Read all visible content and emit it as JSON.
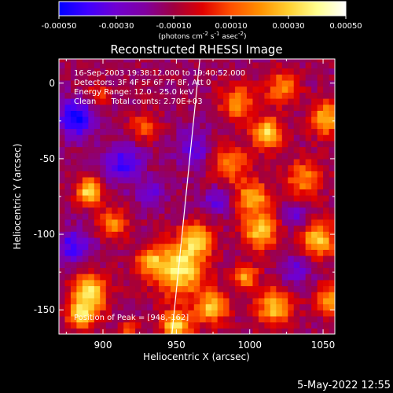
{
  "colorbar": {
    "ticks": [
      "-0.00050",
      "-0.00030",
      "-0.00010",
      "0.00010",
      "0.00030",
      "0.00050"
    ],
    "tick_values": [
      -0.0005,
      -0.0003,
      -0.0001,
      0.0001,
      0.0003,
      0.0005
    ],
    "range": [
      -0.0005,
      0.0005
    ],
    "units_parts": [
      "(photons cm",
      "-2",
      " s",
      "-1",
      " asec",
      "-2",
      ")"
    ],
    "colors": [
      "#0000ff",
      "#4000ff",
      "#7000d0",
      "#8000a0",
      "#a00040",
      "#e00000",
      "#ff5000",
      "#ff9000",
      "#ffd030",
      "#ffff90",
      "#ffffff"
    ]
  },
  "header": {
    "title": "Reconstructed RHESSI Image",
    "info_lines": [
      "16-Sep-2003 19:38:12.000 to 19:40:52.000",
      "Detectors: 3F 4F 5F 6F 7F 8F, Att 0",
      "Energy Range: 12.0 - 25.0 keV",
      "Clean      Total counts: 2.70E+03"
    ],
    "peak_label": "Position of Peak = [948,-162]"
  },
  "chart_data": {
    "type": "heatmap",
    "title": "Reconstructed RHESSI Image",
    "xlabel": "Heliocentric X (arcsec)",
    "ylabel": "Heliocentric Y (arcsec)",
    "xlim": [
      870,
      1058
    ],
    "ylim": [
      -166,
      16
    ],
    "xticks": [
      900,
      950,
      1000,
      1050
    ],
    "yticks": [
      0,
      -50,
      -100,
      -150
    ],
    "peak": [
      948,
      -162
    ],
    "limb_x_at_ylim": [
      -166,
      947,
      16,
      966
    ],
    "blobs": [
      {
        "x": 889,
        "y": -73,
        "r": 7,
        "v": 0.0005
      },
      {
        "x": 889,
        "y": -140,
        "r": 10,
        "v": 0.00045
      },
      {
        "x": 884,
        "y": -155,
        "r": 8,
        "v": 0.0004
      },
      {
        "x": 905,
        "y": -95,
        "r": 8,
        "v": 0.0003
      },
      {
        "x": 895,
        "y": -10,
        "r": 6,
        "v": 0.0002
      },
      {
        "x": 930,
        "y": -120,
        "r": 8,
        "v": 0.0003
      },
      {
        "x": 926,
        "y": -30,
        "r": 8,
        "v": 0.0002
      },
      {
        "x": 950,
        "y": -125,
        "r": 14,
        "v": 0.0005
      },
      {
        "x": 962,
        "y": -105,
        "r": 9,
        "v": 0.0004
      },
      {
        "x": 948,
        "y": -162,
        "r": 8,
        "v": 0.0005
      },
      {
        "x": 972,
        "y": -150,
        "r": 9,
        "v": 0.0004
      },
      {
        "x": 985,
        "y": -55,
        "r": 10,
        "v": 0.0003
      },
      {
        "x": 990,
        "y": -15,
        "r": 10,
        "v": 0.0003
      },
      {
        "x": 1000,
        "y": -78,
        "r": 9,
        "v": 0.0004
      },
      {
        "x": 1005,
        "y": -100,
        "r": 9,
        "v": 0.00045
      },
      {
        "x": 1010,
        "y": -35,
        "r": 8,
        "v": 0.0005
      },
      {
        "x": 1015,
        "y": -150,
        "r": 10,
        "v": 0.0004
      },
      {
        "x": 1020,
        "y": -5,
        "r": 9,
        "v": 0.0003
      },
      {
        "x": 1045,
        "y": -105,
        "r": 10,
        "v": 0.0004
      },
      {
        "x": 1050,
        "y": -25,
        "r": 9,
        "v": 0.0004
      },
      {
        "x": 1035,
        "y": -65,
        "r": 10,
        "v": 0.0003
      },
      {
        "x": 1052,
        "y": -145,
        "r": 8,
        "v": 0.00035
      },
      {
        "x": 915,
        "y": -165,
        "r": 6,
        "v": 0.0002
      },
      {
        "x": 995,
        "y": -130,
        "r": 7,
        "v": 0.00035
      },
      {
        "x": 880,
        "y": -25,
        "r": 10,
        "v": -0.0004
      },
      {
        "x": 878,
        "y": -110,
        "r": 9,
        "v": -0.0003
      },
      {
        "x": 912,
        "y": -55,
        "r": 10,
        "v": -0.0003
      },
      {
        "x": 930,
        "y": -75,
        "r": 8,
        "v": -0.0002
      },
      {
        "x": 960,
        "y": -45,
        "r": 10,
        "v": -0.0002
      },
      {
        "x": 1030,
        "y": -125,
        "r": 8,
        "v": -0.0002
      },
      {
        "x": 975,
        "y": -80,
        "r": 7,
        "v": -0.0002
      },
      {
        "x": 1030,
        "y": -90,
        "r": 6,
        "v": -0.0002
      }
    ]
  },
  "timestamp": "5-May-2022 12:55"
}
